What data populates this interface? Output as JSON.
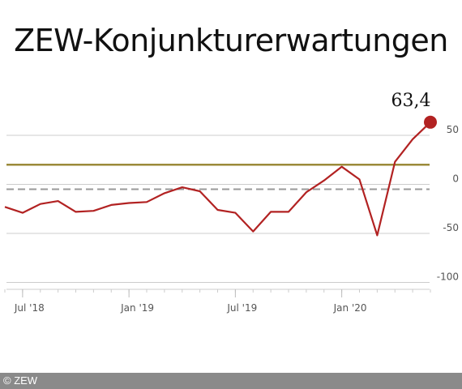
{
  "chart_data": {
    "type": "line",
    "title": "ZEW-Konjunkturerwartungen",
    "xlabel": "",
    "ylabel": "",
    "x": [
      "2018-06",
      "2018-07",
      "2018-08",
      "2018-09",
      "2018-10",
      "2018-11",
      "2018-12",
      "2019-01",
      "2019-02",
      "2019-03",
      "2019-04",
      "2019-05",
      "2019-06",
      "2019-07",
      "2019-08",
      "2019-09",
      "2019-10",
      "2019-11",
      "2019-12",
      "2020-01",
      "2020-02",
      "2020-03",
      "2020-04",
      "2020-05",
      "2020-06"
    ],
    "x_tick_labels": [
      {
        "x": "2018-07",
        "label": "Jul '18"
      },
      {
        "x": "2019-01",
        "label": "Jan '19"
      },
      {
        "x": "2019-07",
        "label": "Jul '19"
      },
      {
        "x": "2020-01",
        "label": "Jan '20"
      }
    ],
    "series": [
      {
        "name": "",
        "color": "#b22222",
        "values": [
          -23,
          -29,
          -20,
          -17,
          -28,
          -27,
          -21,
          -19,
          -18,
          -9,
          -3,
          -7,
          -26,
          -29,
          -48,
          -28,
          -28,
          -8,
          4,
          18,
          5,
          -52,
          23,
          46,
          63.4
        ]
      }
    ],
    "reference_lines": [
      {
        "value": 20,
        "color": "#9b8a3a",
        "style": "solid"
      },
      {
        "value": -5,
        "color": "#999999",
        "style": "dashed"
      }
    ],
    "yticks": [
      50,
      0,
      -50,
      -100
    ],
    "ylim": [
      -100,
      63.4
    ],
    "y_axis_position": "right",
    "grid": true,
    "annotation": {
      "x": "2020-06",
      "label": "63,4"
    }
  },
  "footer": {
    "copyright": "© ZEW"
  }
}
